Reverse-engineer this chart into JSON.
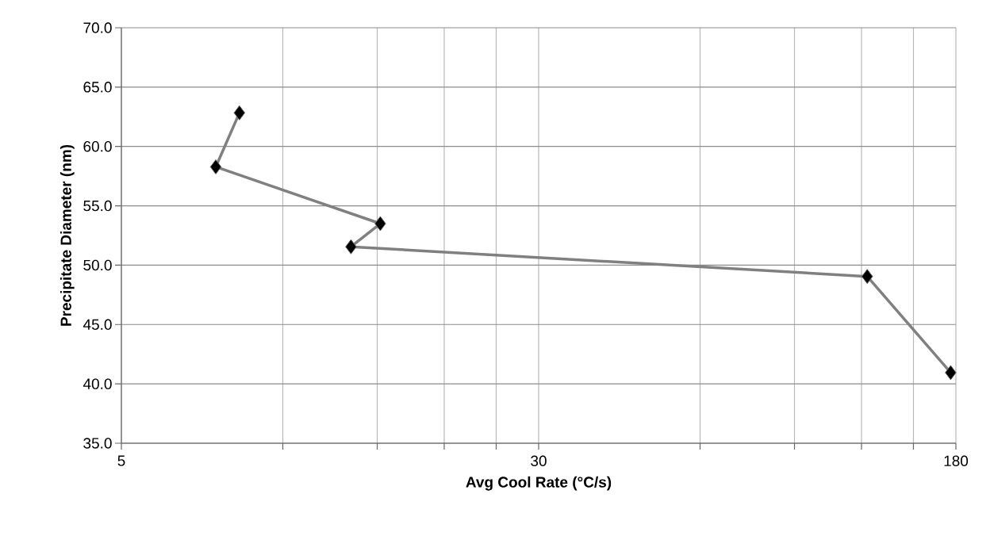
{
  "chart_data": {
    "type": "line",
    "xlabel": "Avg Cool Rate (°C/s)",
    "ylabel": "Precipitate Diameter (nm)",
    "log": "x",
    "x": [
      8.3,
      7.5,
      15.2,
      13.4,
      123,
      176
    ],
    "series": [
      {
        "color": "#808080",
        "values": [
          62.83,
          58.28,
          53.5,
          51.55,
          49.05,
          40.95
        ]
      }
    ],
    "xlim": [
      5,
      180
    ],
    "xticks": [
      5,
      {
        "value": 10,
        "label": null
      },
      {
        "value": 15,
        "label": null
      },
      {
        "value": 20,
        "label": null
      },
      {
        "value": 25,
        "label": null
      },
      30,
      {
        "value": 60,
        "label": null
      },
      {
        "value": 90,
        "label": null
      },
      {
        "value": 120,
        "label": null
      },
      {
        "value": 150,
        "label": null
      },
      180
    ],
    "ylim": [
      35,
      70
    ],
    "yticks": [
      {
        "value": 35,
        "label": "35.0"
      },
      {
        "value": 40,
        "label": "40.0"
      },
      {
        "value": 45,
        "label": "45.0"
      },
      {
        "value": 50,
        "label": "50.0"
      },
      {
        "value": 55,
        "label": "55.0"
      },
      {
        "value": 60,
        "label": "60.0"
      },
      {
        "value": 65,
        "label": "65.0"
      },
      {
        "value": 70,
        "label": "70.0"
      }
    ],
    "grid": true,
    "marker": "diamond",
    "line_style": "solid"
  }
}
